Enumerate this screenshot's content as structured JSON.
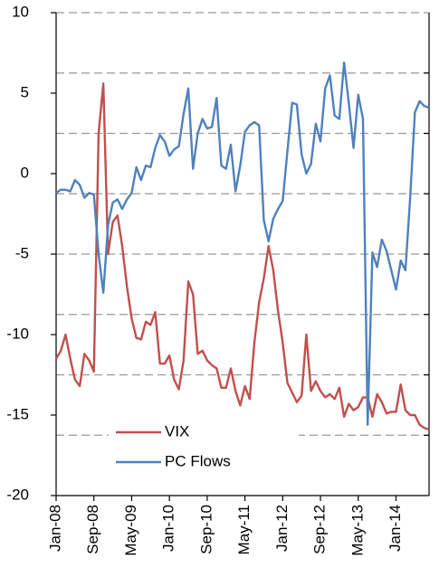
{
  "chart_data": {
    "type": "line",
    "categories": [
      "Jan-08",
      null,
      null,
      null,
      null,
      null,
      null,
      null,
      "Sep-08",
      null,
      null,
      null,
      null,
      null,
      null,
      null,
      "May-09",
      null,
      null,
      null,
      null,
      null,
      null,
      null,
      "Jan-10",
      null,
      null,
      null,
      null,
      null,
      null,
      null,
      "Sep-10",
      null,
      null,
      null,
      null,
      null,
      null,
      null,
      "May-11",
      null,
      null,
      null,
      null,
      null,
      null,
      null,
      "Jan-12",
      null,
      null,
      null,
      null,
      null,
      null,
      null,
      "Sep-12",
      null,
      null,
      null,
      null,
      null,
      null,
      null,
      "May-13",
      null,
      null,
      null,
      null,
      null,
      null,
      null,
      "Jan-14",
      null,
      null,
      null,
      null,
      null,
      null,
      null
    ],
    "series": [
      {
        "name": "VIX",
        "color": "#c0504d",
        "values": [
          -11.5,
          -11,
          -10,
          -11.5,
          -12.8,
          -13.2,
          -11.2,
          -11.6,
          -12.3,
          2.5,
          5.6,
          -5,
          -3,
          -2.6,
          -4.5,
          -7,
          -9,
          -10.2,
          -10.3,
          -9.2,
          -9.4,
          -8.6,
          -11.8,
          -11.8,
          -11.3,
          -12.8,
          -13.4,
          -11.6,
          -6.7,
          -7.5,
          -11.2,
          -11,
          -11.6,
          -11.9,
          -12.1,
          -13.3,
          -13.3,
          -12.1,
          -13.5,
          -14.4,
          -13.2,
          -14,
          -10.5,
          -8,
          -6.5,
          -4.5,
          -6,
          -8.5,
          -10.5,
          -13,
          -13.6,
          -14.2,
          -13.8,
          -10,
          -13.5,
          -12.9,
          -13.5,
          -13.9,
          -13.7,
          -14,
          -13.3,
          -15.1,
          -14.3,
          -14.7,
          -14.5,
          -13.9,
          -13.9,
          -15.1,
          -13.7,
          -14.2,
          -14.9,
          -14.8,
          -14.8,
          -13.1,
          -14.7,
          -15,
          -15,
          -15.6,
          -15.8,
          -15.9
        ]
      },
      {
        "name": "PC Flows",
        "color": "#4f81bd",
        "values": [
          -1.2,
          -1,
          -1,
          -1.1,
          -0.4,
          -0.7,
          -1.5,
          -1.2,
          -1.3,
          -5,
          -7.4,
          -3.2,
          -1.8,
          -1.6,
          -2.2,
          -1.6,
          -1.2,
          0.4,
          -0.4,
          0.5,
          0.4,
          1.6,
          2.4,
          2,
          1.1,
          1.5,
          1.7,
          3.7,
          5.3,
          0.3,
          2.5,
          3.4,
          2.8,
          2.9,
          4.7,
          0.5,
          0.3,
          1.8,
          -1.1,
          0.5,
          2.6,
          3,
          3.2,
          3,
          -2.9,
          -4.2,
          -2.8,
          -2.2,
          -1.7,
          1.4,
          4.4,
          4.3,
          1.2,
          0,
          0.6,
          3.1,
          2,
          5.3,
          6.1,
          3.6,
          3.4,
          6.9,
          4.4,
          1.6,
          4.9,
          3.4,
          -15.6,
          -4.9,
          -5.8,
          -4.1,
          -4.8,
          -6,
          -7.2,
          -5.4,
          -6,
          -1.5,
          3.8,
          4.5,
          4.2,
          4.1
        ]
      }
    ],
    "ylim": [
      -20,
      10
    ],
    "yticks": [
      -20,
      -15,
      -10,
      -5,
      0,
      5,
      10
    ]
  }
}
